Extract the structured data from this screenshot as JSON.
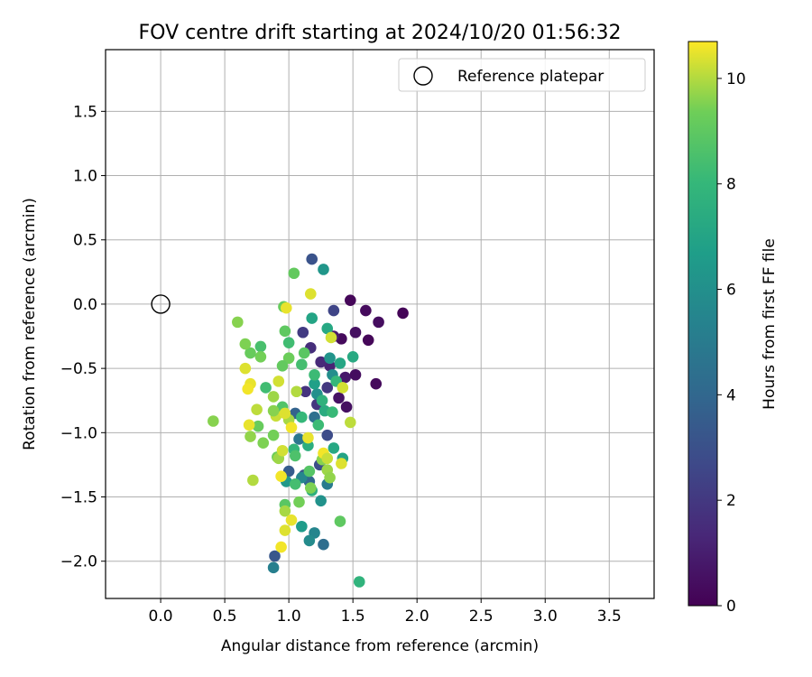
{
  "chart_data": {
    "type": "scatter",
    "title": "FOV centre drift starting at 2024/10/20 01:56:32",
    "xlabel": "Angular distance from reference (arcmin)",
    "ylabel": "Rotation from reference (arcmin)",
    "xlim": [
      -0.43,
      3.85
    ],
    "ylim": [
      -2.29,
      1.98
    ],
    "xticks": [
      0.0,
      0.5,
      1.0,
      1.5,
      2.0,
      2.5,
      3.0,
      3.5
    ],
    "xtick_labels": [
      "0.0",
      "0.5",
      "1.0",
      "1.5",
      "2.0",
      "2.5",
      "3.0",
      "3.5"
    ],
    "yticks": [
      -2.0,
      -1.5,
      -1.0,
      -0.5,
      0.0,
      0.5,
      1.0,
      1.5
    ],
    "ytick_labels": [
      "−2.0",
      "−1.5",
      "−1.0",
      "−0.5",
      "0.0",
      "0.5",
      "1.0",
      "1.5"
    ],
    "grid": true,
    "legend": {
      "position": "top-right",
      "entries": [
        "Reference platepar"
      ]
    },
    "reference": {
      "x": 0.0,
      "y": 0.0,
      "marker": "open-circle"
    },
    "colorbar": {
      "label": "Hours from first FF file",
      "range": [
        0,
        10.7
      ],
      "ticks": [
        0,
        2,
        4,
        6,
        8,
        10
      ],
      "tick_labels": [
        "0",
        "2",
        "4",
        "6",
        "8",
        "10"
      ],
      "colormap": "viridis"
    },
    "series": [
      {
        "points": [
          [
            1.48,
            0.03,
            0.2
          ],
          [
            1.6,
            -0.05,
            0.3
          ],
          [
            1.7,
            -0.14,
            0.4
          ],
          [
            1.89,
            -0.07,
            0.1
          ],
          [
            1.41,
            -0.27,
            0.3
          ],
          [
            1.52,
            -0.22,
            0.5
          ],
          [
            1.62,
            -0.28,
            0.2
          ],
          [
            1.44,
            -0.57,
            0.8
          ],
          [
            1.52,
            -0.55,
            0.4
          ],
          [
            1.68,
            -0.62,
            0.3
          ],
          [
            1.39,
            -0.73,
            0.6
          ],
          [
            1.45,
            -0.8,
            0.5
          ],
          [
            1.35,
            -0.25,
            0.9
          ],
          [
            1.17,
            -0.34,
            1.6
          ],
          [
            1.32,
            -0.48,
            1.2
          ],
          [
            1.25,
            -0.45,
            1.4
          ],
          [
            1.35,
            -0.05,
            2.5
          ],
          [
            1.11,
            -0.22,
            2.1
          ],
          [
            1.13,
            -0.68,
            1.8
          ],
          [
            1.22,
            -0.78,
            1.9
          ],
          [
            1.3,
            -0.65,
            2.0
          ],
          [
            1.18,
            0.35,
            3.1
          ],
          [
            1.3,
            -1.02,
            2.8
          ],
          [
            1.12,
            -1.33,
            3.2
          ],
          [
            1.24,
            -1.25,
            2.9
          ],
          [
            1.0,
            -1.3,
            3.5
          ],
          [
            0.89,
            -1.96,
            3.3
          ],
          [
            1.05,
            -0.85,
            3.8
          ],
          [
            1.16,
            -1.38,
            4.0
          ],
          [
            1.27,
            -1.87,
            4.3
          ],
          [
            0.88,
            -2.05,
            5.2
          ],
          [
            1.2,
            -0.88,
            4.5
          ],
          [
            1.08,
            -1.05,
            4.8
          ],
          [
            1.3,
            -1.4,
            5.0
          ],
          [
            1.2,
            -1.78,
            5.5
          ],
          [
            1.16,
            -1.84,
            5.8
          ],
          [
            1.1,
            -1.35,
            5.6
          ],
          [
            1.27,
            0.27,
            6.3
          ],
          [
            1.34,
            -0.55,
            5.9
          ],
          [
            1.32,
            -0.42,
            6.2
          ],
          [
            1.22,
            -0.7,
            6.0
          ],
          [
            1.25,
            -1.53,
            6.1
          ],
          [
            0.98,
            -1.38,
            6.4
          ],
          [
            1.1,
            -1.73,
            6.6
          ],
          [
            1.18,
            -0.11,
            7.0
          ],
          [
            1.3,
            -0.19,
            7.2
          ],
          [
            1.4,
            -0.46,
            7.1
          ],
          [
            1.5,
            -0.41,
            7.3
          ],
          [
            1.2,
            -0.62,
            6.8
          ],
          [
            1.28,
            -0.83,
            7.4
          ],
          [
            1.15,
            -1.1,
            7.5
          ],
          [
            1.35,
            -1.12,
            7.2
          ],
          [
            1.42,
            -1.2,
            7.0
          ],
          [
            1.55,
            -2.16,
            7.8
          ],
          [
            1.18,
            -1.45,
            7.6
          ],
          [
            1.04,
            -1.13,
            7.9
          ],
          [
            1.1,
            -0.88,
            8.0
          ],
          [
            1.23,
            -0.94,
            8.2
          ],
          [
            1.34,
            -0.84,
            8.1
          ],
          [
            1.0,
            -0.3,
            8.3
          ],
          [
            1.1,
            -0.47,
            8.4
          ],
          [
            1.2,
            -0.55,
            8.2
          ],
          [
            1.37,
            -0.6,
            8.0
          ],
          [
            0.78,
            -0.33,
            8.5
          ],
          [
            0.82,
            -0.65,
            8.3
          ],
          [
            0.95,
            -0.8,
            8.7
          ],
          [
            1.05,
            -1.18,
            8.6
          ],
          [
            1.16,
            -1.3,
            8.8
          ],
          [
            0.97,
            -1.56,
            8.9
          ],
          [
            1.4,
            -1.69,
            9.0
          ],
          [
            1.04,
            0.24,
            9.1
          ],
          [
            0.96,
            -0.02,
            9.2
          ],
          [
            0.97,
            -0.21,
            9.0
          ],
          [
            1.0,
            -0.42,
            9.3
          ],
          [
            0.95,
            -0.48,
            9.1
          ],
          [
            0.78,
            -0.41,
            9.4
          ],
          [
            0.7,
            -0.38,
            9.2
          ],
          [
            0.66,
            -0.31,
            9.5
          ],
          [
            0.6,
            -0.14,
            9.6
          ],
          [
            0.91,
            -1.19,
            9.3
          ],
          [
            0.88,
            -1.02,
            9.4
          ],
          [
            0.76,
            -0.95,
            9.2
          ],
          [
            0.8,
            -1.08,
            9.5
          ],
          [
            0.7,
            -1.03,
            9.7
          ],
          [
            0.41,
            -0.91,
            9.6
          ],
          [
            1.17,
            -1.43,
            9.5
          ],
          [
            1.08,
            -1.54,
            9.4
          ],
          [
            1.26,
            -1.21,
            9.6
          ],
          [
            1.3,
            -1.29,
            9.8
          ],
          [
            1.32,
            -1.35,
            9.7
          ],
          [
            0.97,
            -1.61,
            9.9
          ],
          [
            0.92,
            -1.2,
            9.8
          ],
          [
            1.0,
            -0.9,
            9.9
          ],
          [
            1.06,
            -0.68,
            10.0
          ],
          [
            0.88,
            -0.72,
            9.8
          ],
          [
            1.17,
            0.08,
            10.4
          ],
          [
            0.98,
            -0.03,
            10.5
          ],
          [
            1.33,
            -0.26,
            10.3
          ],
          [
            0.66,
            -0.5,
            10.4
          ],
          [
            0.7,
            -0.62,
            10.5
          ],
          [
            0.68,
            -0.66,
            10.6
          ],
          [
            0.92,
            -0.6,
            10.3
          ],
          [
            0.69,
            -0.94,
            10.5
          ],
          [
            0.9,
            -0.87,
            10.2
          ],
          [
            0.97,
            -0.85,
            10.4
          ],
          [
            1.02,
            -0.96,
            10.6
          ],
          [
            1.15,
            -1.04,
            10.5
          ],
          [
            0.95,
            -1.14,
            10.3
          ],
          [
            1.27,
            -1.16,
            10.6
          ],
          [
            1.41,
            -1.24,
            10.4
          ],
          [
            1.3,
            -1.2,
            10.2
          ],
          [
            0.94,
            -1.34,
            10.6
          ],
          [
            1.02,
            -1.68,
            10.5
          ],
          [
            0.97,
            -1.76,
            10.4
          ],
          [
            0.94,
            -1.89,
            10.6
          ],
          [
            0.72,
            -1.37,
            10.0
          ],
          [
            1.48,
            -0.92,
            10.1
          ],
          [
            1.42,
            -0.65,
            10.3
          ],
          [
            0.75,
            -0.82,
            10.1
          ],
          [
            0.88,
            -0.83,
            9.6
          ],
          [
            1.12,
            -0.38,
            8.9
          ],
          [
            1.26,
            -0.75,
            7.7
          ],
          [
            1.05,
            -1.4,
            8.4
          ]
        ]
      }
    ]
  }
}
